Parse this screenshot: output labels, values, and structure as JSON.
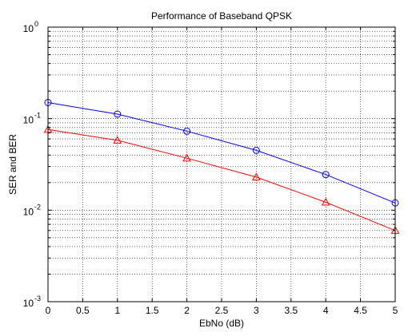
{
  "chart_data": {
    "type": "line",
    "title": "Performance of Baseband QPSK",
    "xlabel": "EbNo (dB)",
    "ylabel": "SER and BER",
    "xlim": [
      0,
      5
    ],
    "ylim": [
      0.001,
      1
    ],
    "yscale": "log",
    "grid": true,
    "x_ticks": [
      "0",
      "0.5",
      "1",
      "1.5",
      "2",
      "2.5",
      "3",
      "3.5",
      "4",
      "4.5",
      "5"
    ],
    "y_ticks": [
      {
        "base": "10",
        "exp": "-3",
        "value": 0.001
      },
      {
        "base": "10",
        "exp": "-2",
        "value": 0.01
      },
      {
        "base": "10",
        "exp": "-1",
        "value": 0.1
      },
      {
        "base": "10",
        "exp": "0",
        "value": 1
      }
    ],
    "series": [
      {
        "color": "#0000ff",
        "marker": "circle",
        "x": [
          0,
          1,
          2,
          3,
          4,
          5
        ],
        "values": [
          0.15,
          0.112,
          0.073,
          0.045,
          0.0245,
          0.012
        ]
      },
      {
        "color": "#ff0000",
        "marker": "triangle",
        "x": [
          0,
          1,
          2,
          3,
          4,
          5
        ],
        "values": [
          0.076,
          0.058,
          0.037,
          0.023,
          0.0122,
          0.006
        ]
      }
    ]
  }
}
